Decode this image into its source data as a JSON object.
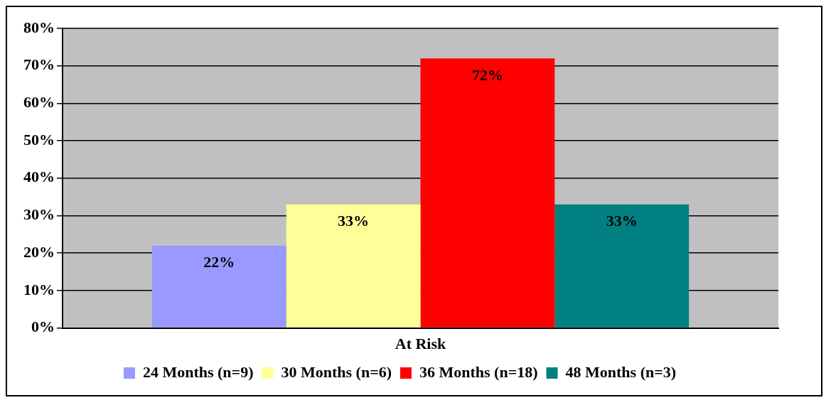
{
  "chart_data": {
    "type": "bar",
    "categories": [
      "At Risk"
    ],
    "series": [
      {
        "name": "24 Months (n=9)",
        "color": "#9999ff",
        "values": [
          22
        ],
        "value_labels": [
          "22%"
        ]
      },
      {
        "name": "30 Months (n=6)",
        "color": "#ffff99",
        "values": [
          33
        ],
        "value_labels": [
          "33%"
        ]
      },
      {
        "name": "36 Months (n=18)",
        "color": "#ff0000",
        "values": [
          72
        ],
        "value_labels": [
          "72%"
        ]
      },
      {
        "name": "48 Months (n=3)",
        "color": "#008080",
        "values": [
          33
        ],
        "value_labels": [
          "33%"
        ]
      }
    ],
    "ylim": [
      0,
      80
    ],
    "yticks": [
      {
        "value": 0,
        "label": "0%"
      },
      {
        "value": 10,
        "label": "10%"
      },
      {
        "value": 20,
        "label": "20%"
      },
      {
        "value": 30,
        "label": "30%"
      },
      {
        "value": 40,
        "label": "40%"
      },
      {
        "value": 50,
        "label": "50%"
      },
      {
        "value": 60,
        "label": "60%"
      },
      {
        "value": 70,
        "label": "70%"
      },
      {
        "value": 80,
        "label": "80%"
      }
    ],
    "grid": "y",
    "legend": "bottom"
  }
}
